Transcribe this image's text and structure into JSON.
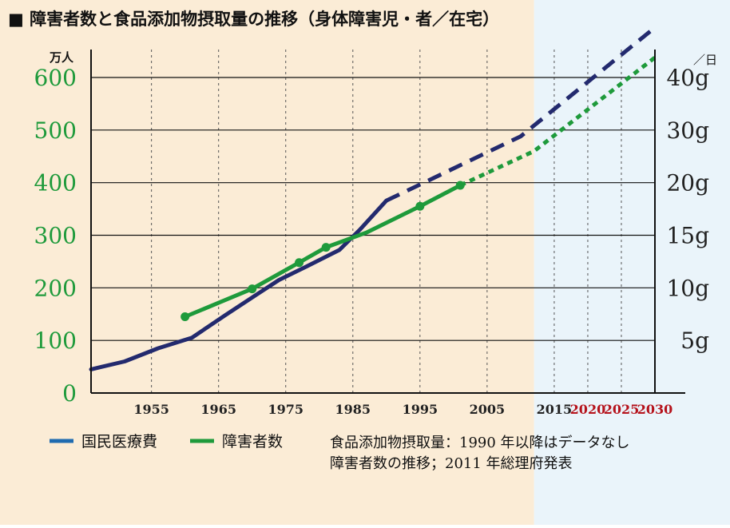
{
  "chart_data": {
    "type": "line",
    "title": "■ 障害者数と食品添加物摂取量の推移（身体障害児・者／在宅）",
    "left_axis": {
      "unit_label": "万人",
      "ticks": [
        "0",
        "100",
        "200",
        "300",
        "400",
        "500",
        "600"
      ],
      "tick_values": [
        0,
        100,
        200,
        300,
        400,
        500,
        600
      ],
      "ylim": [
        0,
        600
      ]
    },
    "right_axis": {
      "unit_label": "／日",
      "ticks": [
        "5g",
        "10g",
        "15g",
        "20g",
        "30g",
        "40g"
      ],
      "tick_left_equiv": [
        100,
        200,
        300,
        400,
        500,
        600
      ]
    },
    "x_axis": {
      "xlim": [
        1946,
        2030
      ],
      "ticks": [
        {
          "label": "1955",
          "value": 1955,
          "color": "#222222"
        },
        {
          "label": "1965",
          "value": 1965,
          "color": "#222222"
        },
        {
          "label": "1975",
          "value": 1975,
          "color": "#222222"
        },
        {
          "label": "1985",
          "value": 1985,
          "color": "#222222"
        },
        {
          "label": "1995",
          "value": 1995,
          "color": "#222222"
        },
        {
          "label": "2005",
          "value": 2005,
          "color": "#222222"
        },
        {
          "label": "2015",
          "value": 2015,
          "color": "#222222"
        },
        {
          "label": "2020",
          "value": 2020,
          "color": "#b5121b"
        },
        {
          "label": "2025",
          "value": 2025,
          "color": "#b5121b"
        },
        {
          "label": "2030",
          "value": 2030,
          "color": "#b5121b"
        }
      ],
      "gridlines": [
        1955,
        1965,
        1975,
        1985,
        1995,
        2005,
        2015,
        2020,
        2025,
        2030
      ]
    },
    "shading": {
      "past_color": "#fbecd6",
      "future_color": "#eaf4fa",
      "split_x": 2012
    },
    "series": [
      {
        "name": "国民医療費",
        "color": "#232a6e",
        "solid": [
          [
            1946,
            45
          ],
          [
            1951,
            60
          ],
          [
            1956,
            85
          ],
          [
            1961,
            105
          ],
          [
            1966,
            148
          ],
          [
            1971,
            190
          ],
          [
            1974,
            215
          ],
          [
            1978,
            240
          ],
          [
            1983,
            272
          ],
          [
            1986,
            310
          ],
          [
            1990,
            366
          ]
        ],
        "dashed": [
          [
            1990,
            366
          ],
          [
            2010,
            488
          ],
          [
            2030,
            695
          ]
        ]
      },
      {
        "name": "障害者数",
        "color": "#1e9a3b",
        "solid": [
          [
            1960,
            145
          ],
          [
            1970,
            198
          ],
          [
            1977,
            248
          ],
          [
            1981,
            277
          ],
          [
            1987,
            305
          ],
          [
            1995,
            355
          ],
          [
            2001,
            395
          ]
        ],
        "markers": [
          [
            1960,
            145
          ],
          [
            1970,
            198
          ],
          [
            1977,
            248
          ],
          [
            1981,
            277
          ],
          [
            1995,
            355
          ],
          [
            2001,
            395
          ]
        ],
        "dotted": [
          [
            2001,
            395
          ],
          [
            2012,
            460
          ],
          [
            2030,
            638
          ]
        ]
      }
    ],
    "legend": {
      "position": "bottom-left",
      "items": [
        {
          "label": "国民医療費",
          "color": "#1f6bb0"
        },
        {
          "label": "障害者数",
          "color": "#1e9a3b"
        }
      ]
    },
    "notes": [
      "食品添加物摂取量：1990 年以降はデータなし",
      "障害者数の推移；2011 年総理府発表"
    ]
  }
}
